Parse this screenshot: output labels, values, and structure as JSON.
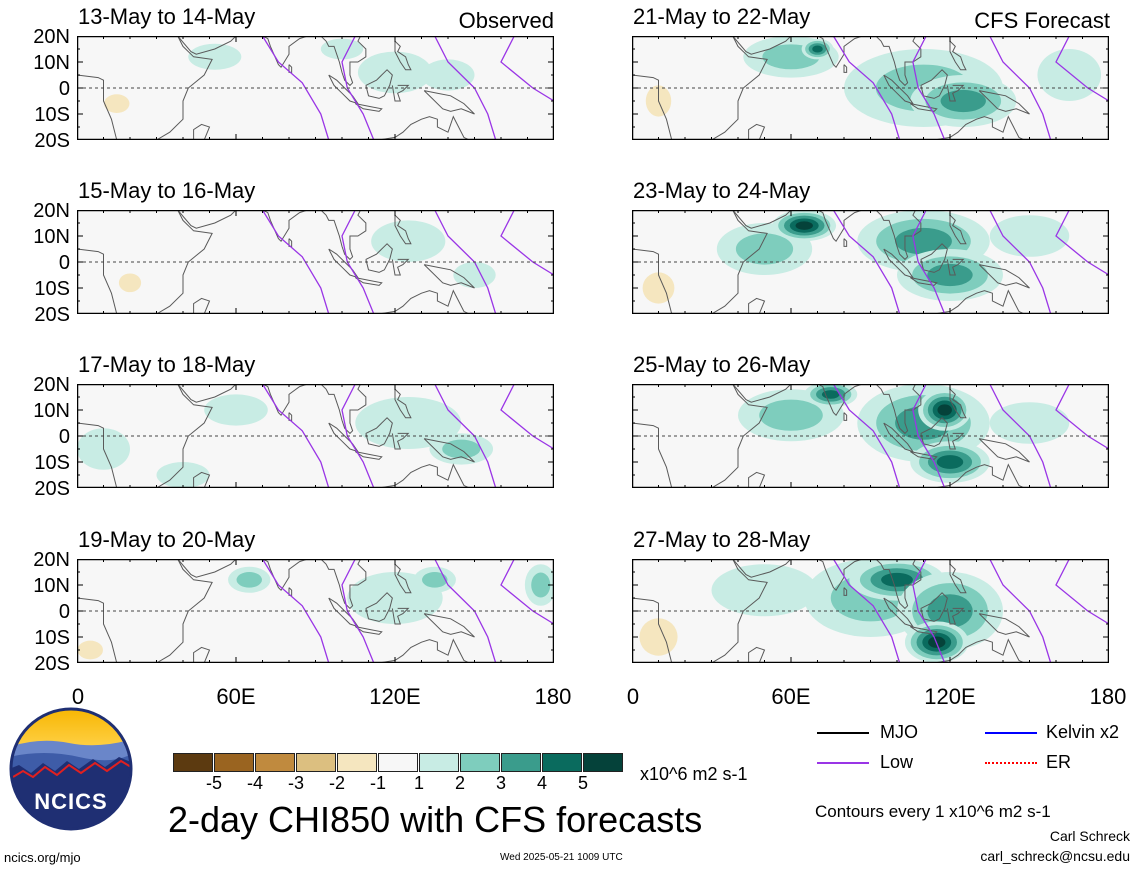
{
  "header": {
    "observed_label": "Observed",
    "forecast_label": "CFS Forecast"
  },
  "chart_data": {
    "type": "heatmap",
    "variable": "2-day CHI850",
    "units": "x10^6 m2 s-1",
    "x_axis": {
      "range": [
        0,
        180
      ],
      "ticks": [
        "0",
        "60E",
        "120E",
        "180"
      ]
    },
    "y_axis": {
      "range": [
        -20,
        20
      ],
      "ticks": [
        "20N",
        "10N",
        "0",
        "10S",
        "20S"
      ]
    },
    "panels": [
      {
        "title": "13-May to 14-May",
        "source": "Observed",
        "strength": 0.35
      },
      {
        "title": "15-May to 16-May",
        "source": "Observed",
        "strength": 0.25
      },
      {
        "title": "17-May to 18-May",
        "source": "Observed",
        "strength": 0.35
      },
      {
        "title": "19-May to 20-May",
        "source": "Observed",
        "strength": 0.45
      },
      {
        "title": "21-May to 22-May",
        "source": "CFS Forecast",
        "strength": 0.75
      },
      {
        "title": "23-May to 24-May",
        "source": "CFS Forecast",
        "strength": 0.9
      },
      {
        "title": "25-May to 26-May",
        "source": "CFS Forecast",
        "strength": 0.95
      },
      {
        "title": "27-May to 28-May",
        "source": "CFS Forecast",
        "strength": 1.0
      }
    ],
    "colorbar": {
      "ticks": [
        "-5",
        "-4",
        "-3",
        "-2",
        "-1",
        "1",
        "2",
        "3",
        "4",
        "5"
      ],
      "colors": [
        "#5c3a10",
        "#9a6420",
        "#c08a3e",
        "#dcbf80",
        "#f5e6bf",
        "#f7f7f7",
        "#c8ece4",
        "#7ecdbd",
        "#3a9c8c",
        "#0a6b5e",
        "#05423a"
      ],
      "units_label": "x10^6 m2 s-1"
    },
    "legend": [
      {
        "name": "MJO",
        "color": "#000000"
      },
      {
        "name": "Kelvin x2",
        "color": "#0000ff"
      },
      {
        "name": "Low",
        "color": "#9a35e6"
      },
      {
        "name": "ER",
        "color": "#ff0000"
      }
    ],
    "title": "2-day CHI850 with CFS forecasts",
    "contours_note": "Contours every 1 x10^6 m2 s-1"
  },
  "footer": {
    "logo_text": "NCICS",
    "site": "ncics.org/mjo",
    "timestamp": "Wed 2025-05-21 1009 UTC",
    "author": "Carl Schreck",
    "email": "carl_schreck@ncsu.edu"
  }
}
